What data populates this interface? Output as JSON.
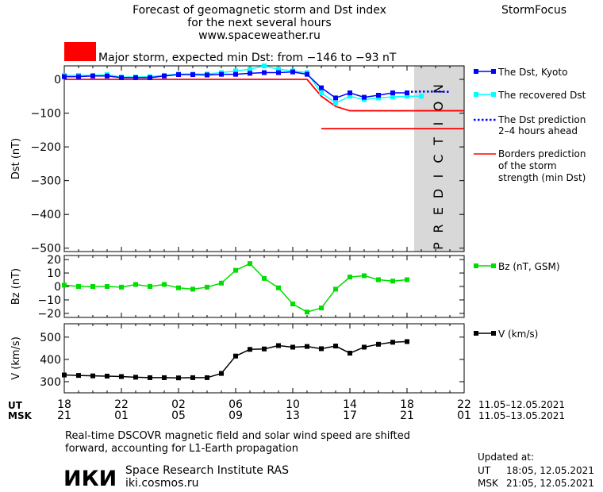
{
  "header": {
    "title_line1": "Forecast of geomagnetic storm and Dst index",
    "title_line2": "for the next several hours",
    "site": "www.spaceweather.ru",
    "brand": "StormFocus",
    "storm_level": "Major storm, expected min Dst: from −146 to −93 nT",
    "storm_color": "#ff0000"
  },
  "prediction_label": "PREDICTION",
  "legend": {
    "dst_kyoto": "The Dst, Kyoto",
    "recovered": "The recovered Dst",
    "prediction_line1": "The Dst prediction",
    "prediction_line2": "2–4 hours ahead",
    "borders_line1": "Borders prediction",
    "borders_line2": "of the storm",
    "borders_line3": "strength (min Dst)",
    "bz": "Bz (nT, GSM)",
    "v": "V (km/s)"
  },
  "time_axis": {
    "ut_label": "UT",
    "msk_label": "MSK",
    "ut_ticks": [
      "18",
      "22",
      "02",
      "06",
      "10",
      "14",
      "18",
      "22"
    ],
    "msk_ticks": [
      "21",
      "01",
      "05",
      "09",
      "13",
      "17",
      "21",
      "01"
    ],
    "ut_range": "11.05–12.05.2021",
    "msk_range": "11.05–13.05.2021"
  },
  "footer": {
    "note_line1": "Real-time DSCOVR magnetic field and solar wind speed are shifted",
    "note_line2": "forward, accounting for L1-Earth propagation",
    "institute": "Space Research Institute RAS",
    "institute_url": "iki.cosmos.ru",
    "logo_text": "ИКИ",
    "updated_label": "Updated at:",
    "updated_ut_label": "UT",
    "updated_ut": "18:05, 12.05.2021",
    "updated_msk_label": "MSK",
    "updated_msk": "21:05, 12.05.2021"
  },
  "chart_data": [
    {
      "type": "line",
      "ylabel": "Dst (nT)",
      "ylim": [
        -510,
        40
      ],
      "yticks": [
        0,
        -100,
        -200,
        -300,
        -400,
        -500
      ],
      "x_unit": "hours since 18 UT 11.05.2021",
      "xlim": [
        0,
        28
      ],
      "prediction_region": [
        24.5,
        28
      ],
      "series": [
        {
          "name": "The Dst, Kyoto",
          "color": "#0000ff",
          "marker": "square",
          "x": [
            0,
            1,
            2,
            3,
            4,
            5,
            6,
            7,
            8,
            9,
            10,
            11,
            12,
            13,
            14,
            15,
            16,
            17,
            18,
            19,
            20,
            21,
            22,
            23,
            24
          ],
          "y": [
            8,
            8,
            10,
            10,
            5,
            5,
            5,
            10,
            14,
            14,
            13,
            15,
            15,
            18,
            20,
            20,
            22,
            15,
            -25,
            -55,
            -40,
            -53,
            -47,
            -40,
            -40
          ]
        },
        {
          "name": "The recovered Dst",
          "color": "#00ffff",
          "marker": "square",
          "x": [
            0,
            1,
            2,
            3,
            4,
            5,
            6,
            7,
            8,
            9,
            10,
            11,
            12,
            13,
            14,
            15,
            16,
            17,
            18,
            19,
            20,
            21,
            22,
            23,
            24,
            25
          ],
          "y": [
            12,
            12,
            12,
            14,
            7,
            7,
            8,
            12,
            16,
            16,
            16,
            20,
            25,
            30,
            40,
            30,
            25,
            20,
            -40,
            -70,
            -50,
            -60,
            -55,
            -52,
            -50,
            -50
          ]
        },
        {
          "name": "The Dst prediction 2–4 hours ahead",
          "color": "#0000ff",
          "style": "dotted",
          "x": [
            24,
            25,
            26,
            27
          ],
          "y": [
            -37,
            -36,
            -36,
            -37
          ]
        }
      ],
      "borders": [
        {
          "name": "upper border",
          "color": "#ff0000",
          "x": [
            0,
            17,
            18,
            19,
            20,
            28
          ],
          "y": [
            0,
            0,
            -50,
            -80,
            -93,
            -93
          ]
        },
        {
          "name": "lower border",
          "color": "#ff0000",
          "x": [
            18,
            28
          ],
          "y": [
            -146,
            -146
          ]
        }
      ]
    },
    {
      "type": "line",
      "ylabel": "Bz (nT)",
      "ylim": [
        -23,
        23
      ],
      "yticks": [
        20,
        10,
        0,
        -10,
        -20
      ],
      "series": [
        {
          "name": "Bz (nT, GSM)",
          "color": "#00dd00",
          "marker": "square",
          "x": [
            0,
            1,
            2,
            3,
            4,
            5,
            6,
            7,
            8,
            9,
            10,
            11,
            12,
            13,
            14,
            15,
            16,
            17,
            18,
            19,
            20,
            21,
            22,
            23,
            24
          ],
          "y": [
            1,
            0,
            0,
            0,
            -0.5,
            1.5,
            0,
            1.5,
            -1,
            -2,
            -0.5,
            2.5,
            12,
            17,
            6,
            -1,
            -13,
            -19,
            -16,
            -2,
            7,
            8,
            5,
            4,
            5
          ]
        }
      ]
    },
    {
      "type": "line",
      "ylabel": "V (km/s)",
      "ylim": [
        250,
        560
      ],
      "yticks": [
        500,
        400,
        300
      ],
      "series": [
        {
          "name": "V (km/s)",
          "color": "#000000",
          "marker": "square",
          "x": [
            0,
            1,
            2,
            3,
            4,
            5,
            6,
            7,
            8,
            9,
            10,
            11,
            12,
            13,
            14,
            15,
            16,
            17,
            18,
            19,
            20,
            21,
            22,
            23,
            24
          ],
          "y": [
            330,
            328,
            326,
            325,
            323,
            320,
            318,
            318,
            317,
            318,
            318,
            337,
            415,
            445,
            447,
            462,
            455,
            458,
            448,
            460,
            428,
            455,
            468,
            477,
            480
          ]
        }
      ]
    }
  ]
}
